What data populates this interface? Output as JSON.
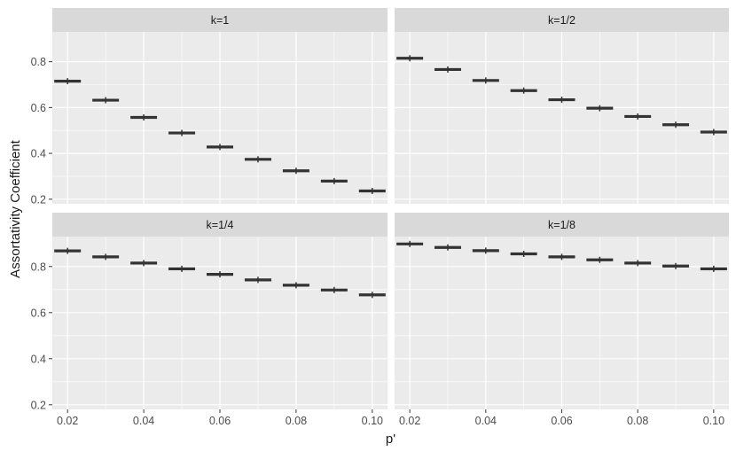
{
  "chart_data": {
    "type": "box",
    "xlabel": "p'",
    "ylabel": "Assortativity Coefficient",
    "x": [
      0.02,
      0.03,
      0.04,
      0.05,
      0.06,
      0.07,
      0.08,
      0.09,
      0.1
    ],
    "x_ticks": [
      "0.02",
      "0.04",
      "0.06",
      "0.08",
      "0.10"
    ],
    "y_ticks": [
      "0.2",
      "0.4",
      "0.6",
      "0.8"
    ],
    "ylim": [
      0.18,
      0.93
    ],
    "xlim": [
      0.016,
      0.104
    ],
    "colors": {
      "panel": "#ebebeb",
      "strip": "#d9d9d9",
      "grid": "#ffffff",
      "mark": "#333333",
      "text": "#1a1a1a",
      "tick": "#4d4d4d"
    },
    "panels": [
      {
        "label": "k=1",
        "values": [
          0.715,
          0.632,
          0.557,
          0.489,
          0.428,
          0.374,
          0.324,
          0.279,
          0.236
        ]
      },
      {
        "label": "k=1/2",
        "values": [
          0.815,
          0.766,
          0.718,
          0.674,
          0.634,
          0.597,
          0.561,
          0.525,
          0.493
        ]
      },
      {
        "label": "k=1/4",
        "values": [
          0.868,
          0.842,
          0.815,
          0.79,
          0.766,
          0.742,
          0.719,
          0.698,
          0.677
        ]
      },
      {
        "label": "k=1/8",
        "values": [
          0.898,
          0.883,
          0.869,
          0.855,
          0.842,
          0.829,
          0.815,
          0.802,
          0.79
        ]
      }
    ]
  }
}
